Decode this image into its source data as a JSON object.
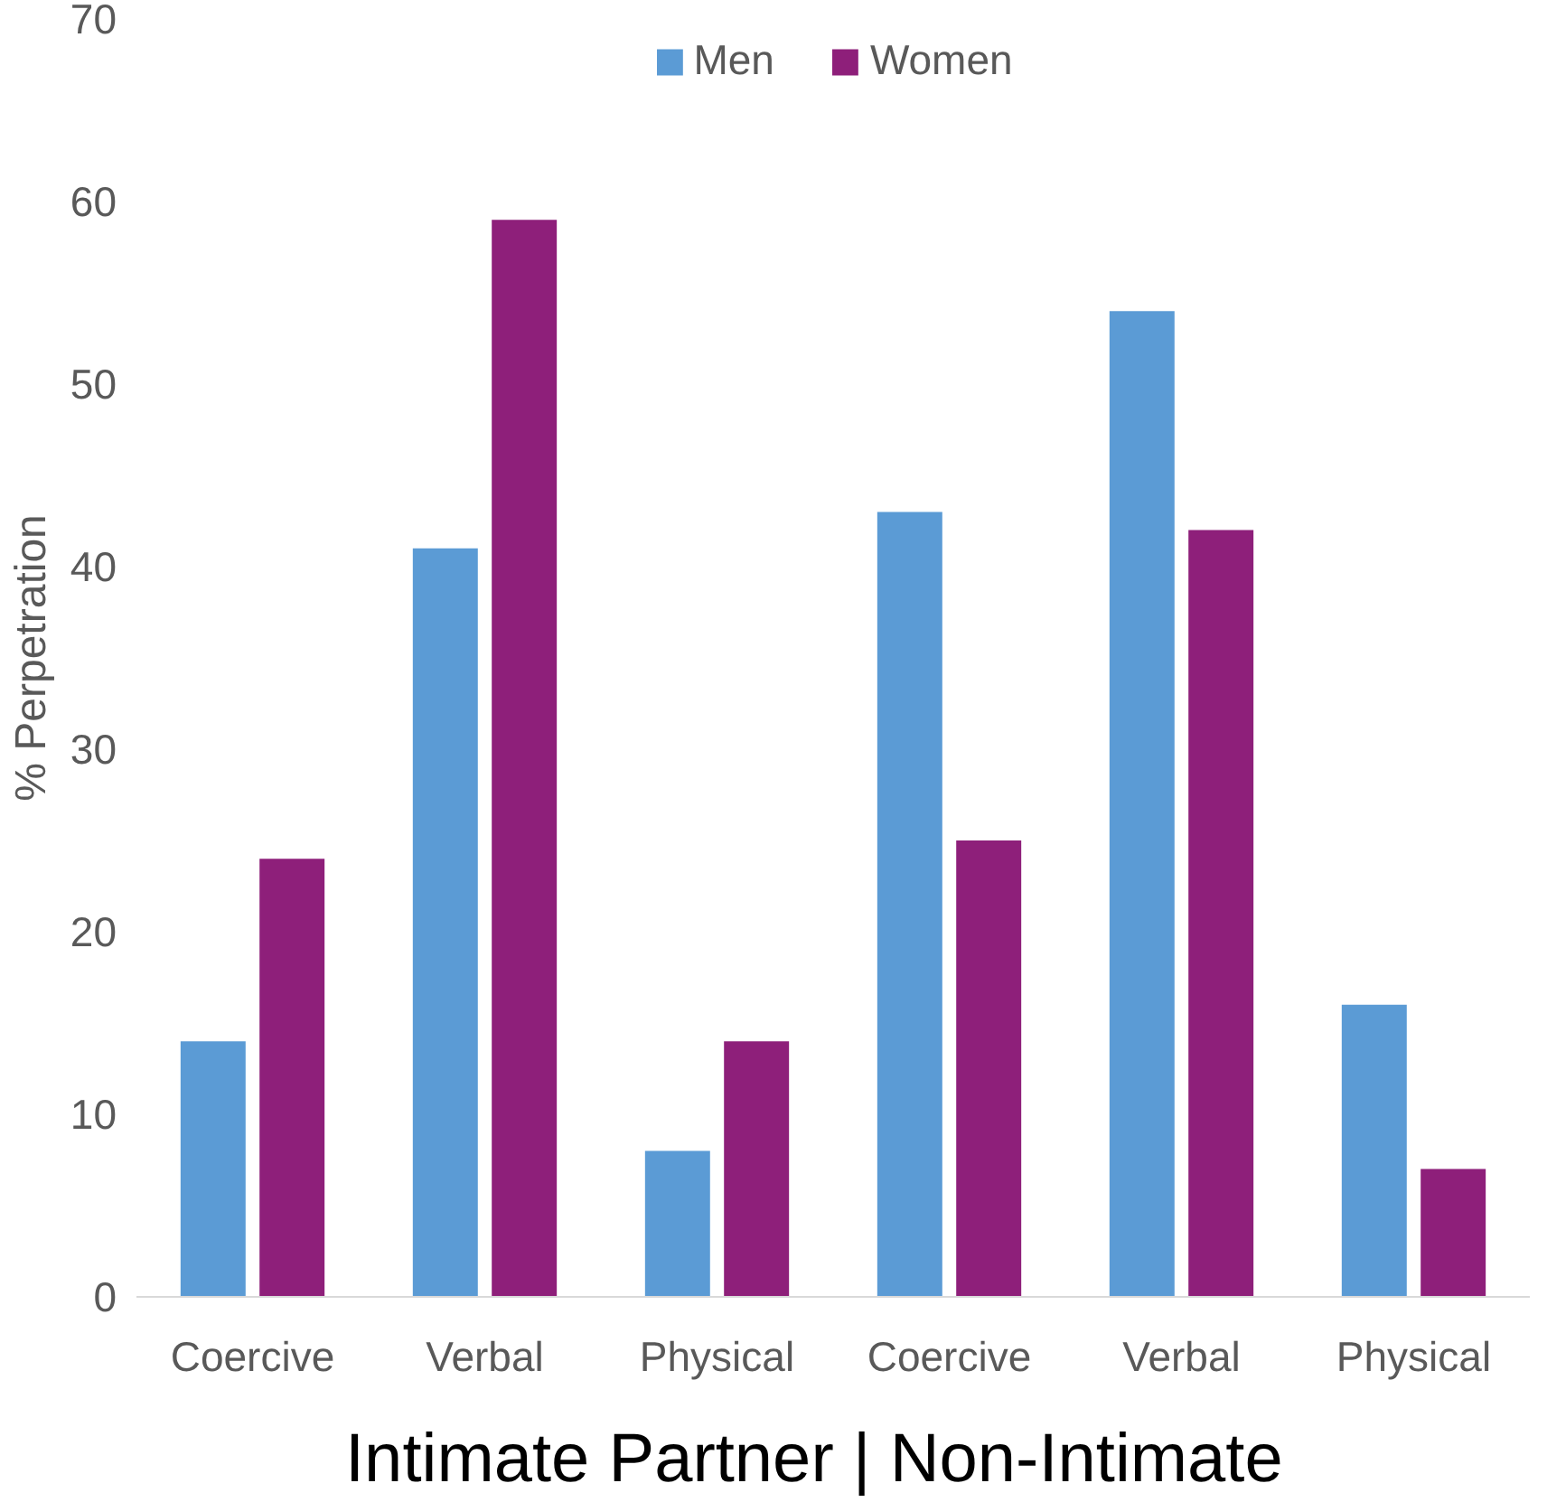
{
  "chart_data": {
    "type": "bar",
    "categories": [
      "Coercive",
      "Verbal",
      "Physical",
      "Coercive",
      "Verbal",
      "Physical"
    ],
    "series": [
      {
        "name": "Men",
        "color": "#5b9bd5",
        "values": [
          14,
          41,
          8,
          43,
          54,
          16
        ]
      },
      {
        "name": "Women",
        "color": "#8e1f7a",
        "values": [
          24,
          59,
          14,
          25,
          42,
          7
        ]
      }
    ],
    "ylabel": "% Perpetration",
    "xlabel": "Intimate Partner  |  Non-Intimate",
    "ylim": [
      0,
      70
    ],
    "yticks": [
      0,
      10,
      20,
      30,
      40,
      50,
      60,
      70
    ],
    "grid": false,
    "legend": "top"
  }
}
